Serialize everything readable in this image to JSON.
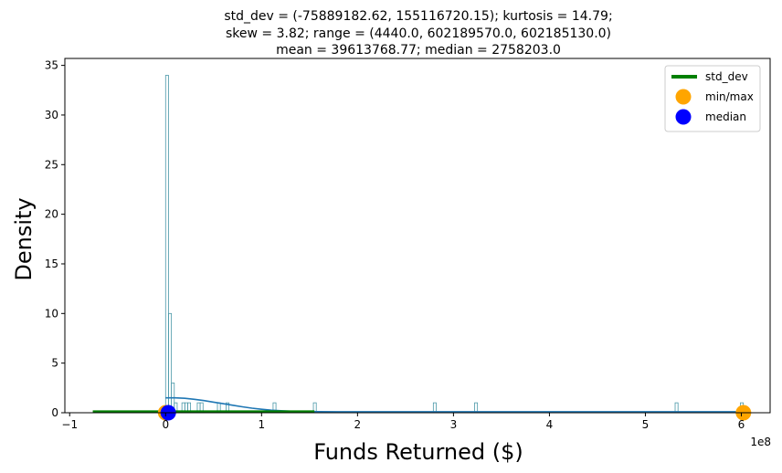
{
  "chart_data": {
    "type": "histogram",
    "title_lines": [
      "std_dev = (-75889182.62, 155116720.15); kurtosis = 14.79;",
      "skew = 3.82; range = (4440.0, 602189570.0, 602185130.0)",
      "mean = 39613768.77; median = 2758203.0"
    ],
    "xlabel": "Funds Returned ($)",
    "ylabel": "Density",
    "x_offset_label": "1e8",
    "x_ticks": [
      -1,
      0,
      1,
      2,
      3,
      4,
      5,
      6
    ],
    "y_ticks": [
      0,
      5,
      10,
      15,
      20,
      25,
      30,
      35
    ],
    "xlim": [
      -1.05,
      6.3
    ],
    "ylim": [
      0,
      35.7
    ],
    "grid": false,
    "legend_position": "top-right",
    "legend": [
      {
        "label": "std_dev",
        "kind": "line",
        "color": "#008000"
      },
      {
        "label": "min/max",
        "kind": "marker",
        "color": "#ffa500"
      },
      {
        "label": "median",
        "kind": "marker",
        "color": "#0000ff"
      }
    ],
    "bin_width": 0.0301,
    "bins": [
      {
        "x": 0.0,
        "h": 34
      },
      {
        "x": 0.0301,
        "h": 10
      },
      {
        "x": 0.0602,
        "h": 3
      },
      {
        "x": 0.0903,
        "h": 1
      },
      {
        "x": 0.17,
        "h": 1
      },
      {
        "x": 0.2,
        "h": 1
      },
      {
        "x": 0.23,
        "h": 1
      },
      {
        "x": 0.33,
        "h": 1
      },
      {
        "x": 0.36,
        "h": 1
      },
      {
        "x": 0.54,
        "h": 1
      },
      {
        "x": 0.63,
        "h": 1
      },
      {
        "x": 1.12,
        "h": 1
      },
      {
        "x": 1.54,
        "h": 1
      },
      {
        "x": 2.79,
        "h": 1
      },
      {
        "x": 3.22,
        "h": 1
      },
      {
        "x": 5.31,
        "h": 1
      },
      {
        "x": 5.99,
        "h": 1
      }
    ],
    "kde_curve": {
      "color": "#1f77b4",
      "x": [
        0.0,
        0.1,
        0.2,
        0.3,
        0.4,
        0.5,
        0.6,
        0.7,
        0.8,
        0.9,
        1.0,
        1.1,
        1.2,
        1.3,
        1.4,
        1.5,
        1.6,
        1.8,
        2.0,
        2.5,
        3.0,
        3.5,
        4.0,
        4.5,
        5.0,
        5.5,
        6.02
      ],
      "y": [
        1.5,
        1.5,
        1.45,
        1.35,
        1.22,
        1.07,
        0.91,
        0.75,
        0.6,
        0.46,
        0.35,
        0.26,
        0.2,
        0.16,
        0.13,
        0.12,
        0.11,
        0.1,
        0.1,
        0.1,
        0.1,
        0.1,
        0.1,
        0.1,
        0.1,
        0.1,
        0.1
      ]
    },
    "std_dev_line": {
      "x": [
        -0.7589,
        1.5512
      ],
      "y": 0.1,
      "color": "#008000"
    },
    "min_max_points": {
      "x": [
        4.44e-05,
        6.0219
      ],
      "y": 0,
      "color": "#ffa500"
    },
    "median_point": {
      "x": 0.0276,
      "y": 0,
      "color": "#0000ff"
    }
  }
}
